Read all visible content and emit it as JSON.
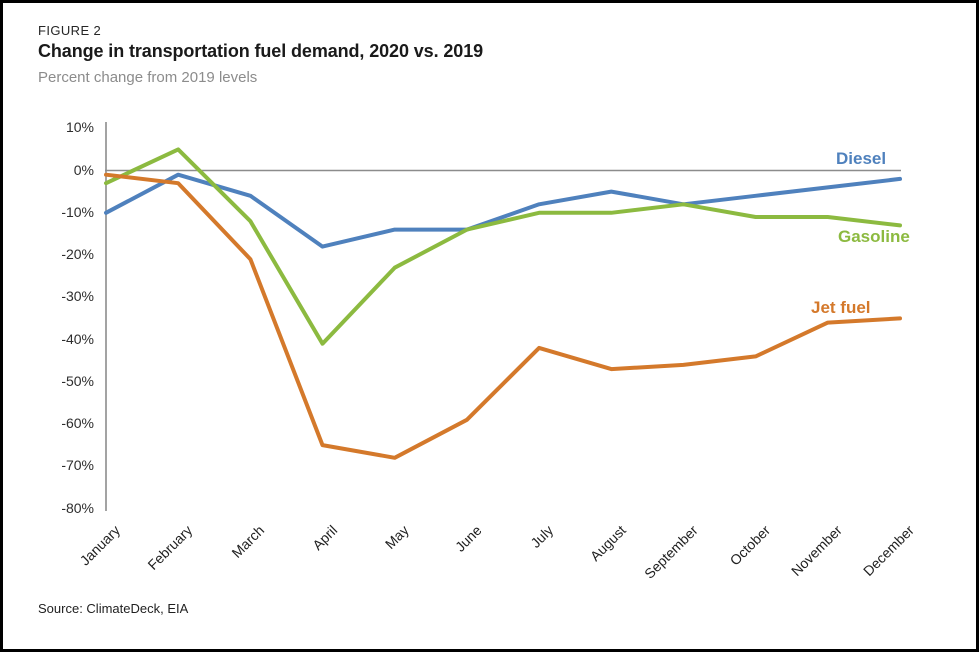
{
  "header": {
    "figure_label": "FIGURE 2",
    "title": "Change in transportation fuel demand, 2020 vs. 2019",
    "subtitle": "Percent change from 2019 levels"
  },
  "footer": {
    "source": "Source: ClimateDeck, EIA"
  },
  "chart_data": {
    "type": "line",
    "title": "Change in transportation fuel demand, 2020 vs. 2019",
    "subtitle": "Percent change from 2019 levels",
    "categories": [
      "January",
      "February",
      "March",
      "April",
      "May",
      "June",
      "July",
      "August",
      "September",
      "October",
      "November",
      "December"
    ],
    "series": [
      {
        "name": "Diesel",
        "color": "#4F81BD",
        "values": [
          -10,
          -1,
          -6,
          -18,
          -14,
          -14,
          -8,
          -5,
          -8,
          -6,
          -4,
          -2
        ]
      },
      {
        "name": "Gasoline",
        "color": "#8CBA40",
        "values": [
          -3,
          5,
          -12,
          -41,
          -23,
          -14,
          -10,
          -10,
          -8,
          -11,
          -11,
          -13
        ]
      },
      {
        "name": "Jet fuel",
        "color": "#D4792B",
        "values": [
          -1,
          -3,
          -21,
          -65,
          -68,
          -59,
          -42,
          -47,
          -46,
          -44,
          -36,
          -35
        ]
      }
    ],
    "y_ticks": [
      "10%",
      "0%",
      "-10%",
      "-20%",
      "-30%",
      "-40%",
      "-50%",
      "-60%",
      "-70%",
      "-80%"
    ],
    "ylim": [
      -80,
      10
    ],
    "y_unit": "%",
    "xlabel": "",
    "ylabel": "",
    "grid": "zero-line only",
    "zero_line": true,
    "legend_position": "direct labels at line ends",
    "colors": {
      "axis_line": "#8C8C8C",
      "zero_line": "#8C8C8C",
      "tick_text": "#2D2D2D"
    }
  }
}
